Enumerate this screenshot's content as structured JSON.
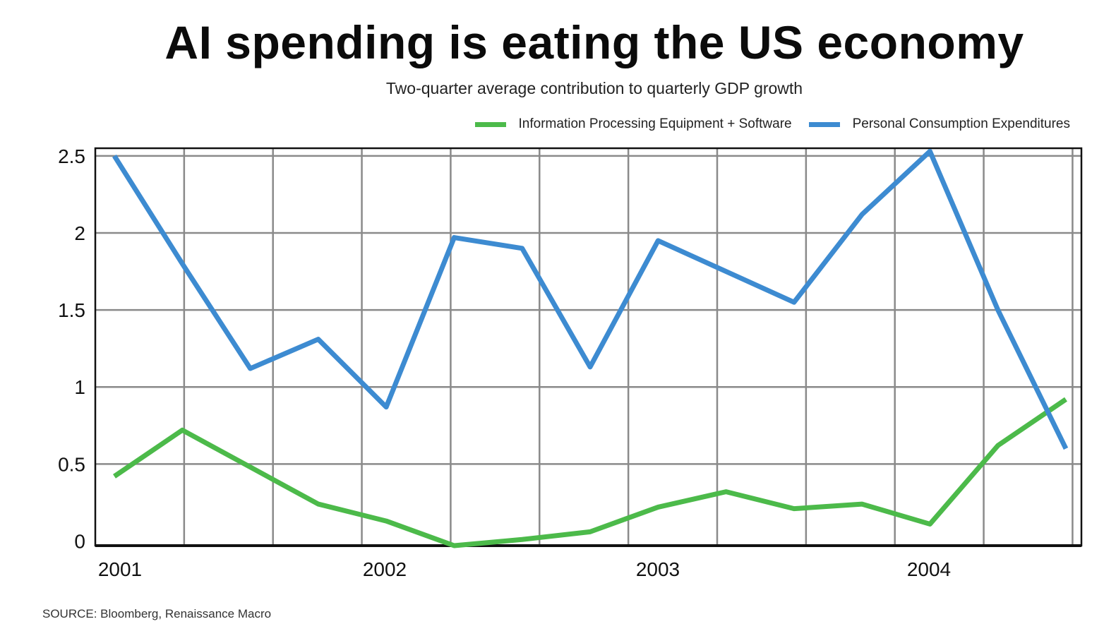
{
  "chart_data": {
    "type": "line",
    "title": "AI spending is eating the US economy",
    "subtitle": "Two-quarter average contribution to quarterly GDP growth",
    "source": "SOURCE: Bloomberg, Renaissance Macro",
    "x": [
      2001.0,
      2001.25,
      2001.5,
      2001.75,
      2002.0,
      2002.25,
      2002.5,
      2002.75,
      2003.0,
      2003.25,
      2003.5,
      2003.75,
      2004.0,
      2004.25,
      2004.5
    ],
    "x_ticks": [
      "2001",
      "2002",
      "2003",
      "2004"
    ],
    "y_ticks": [
      "0",
      "0.5",
      "1",
      "1.5",
      "2",
      "2.5"
    ],
    "ylim": [
      -0.03,
      2.55
    ],
    "series": [
      {
        "name": "Information Processing Equipment + Software",
        "color": "#4cba4a",
        "values": [
          0.42,
          0.72,
          0.48,
          0.24,
          0.13,
          -0.03,
          0.01,
          0.06,
          0.22,
          0.32,
          0.21,
          0.24,
          0.11,
          0.62,
          0.92
        ]
      },
      {
        "name": "Personal Consumption Expenditures",
        "color": "#3d8bd1",
        "values": [
          2.5,
          1.8,
          1.12,
          1.31,
          0.87,
          1.97,
          1.9,
          1.13,
          1.95,
          1.75,
          1.55,
          2.12,
          2.53,
          1.5,
          0.6
        ]
      }
    ]
  }
}
